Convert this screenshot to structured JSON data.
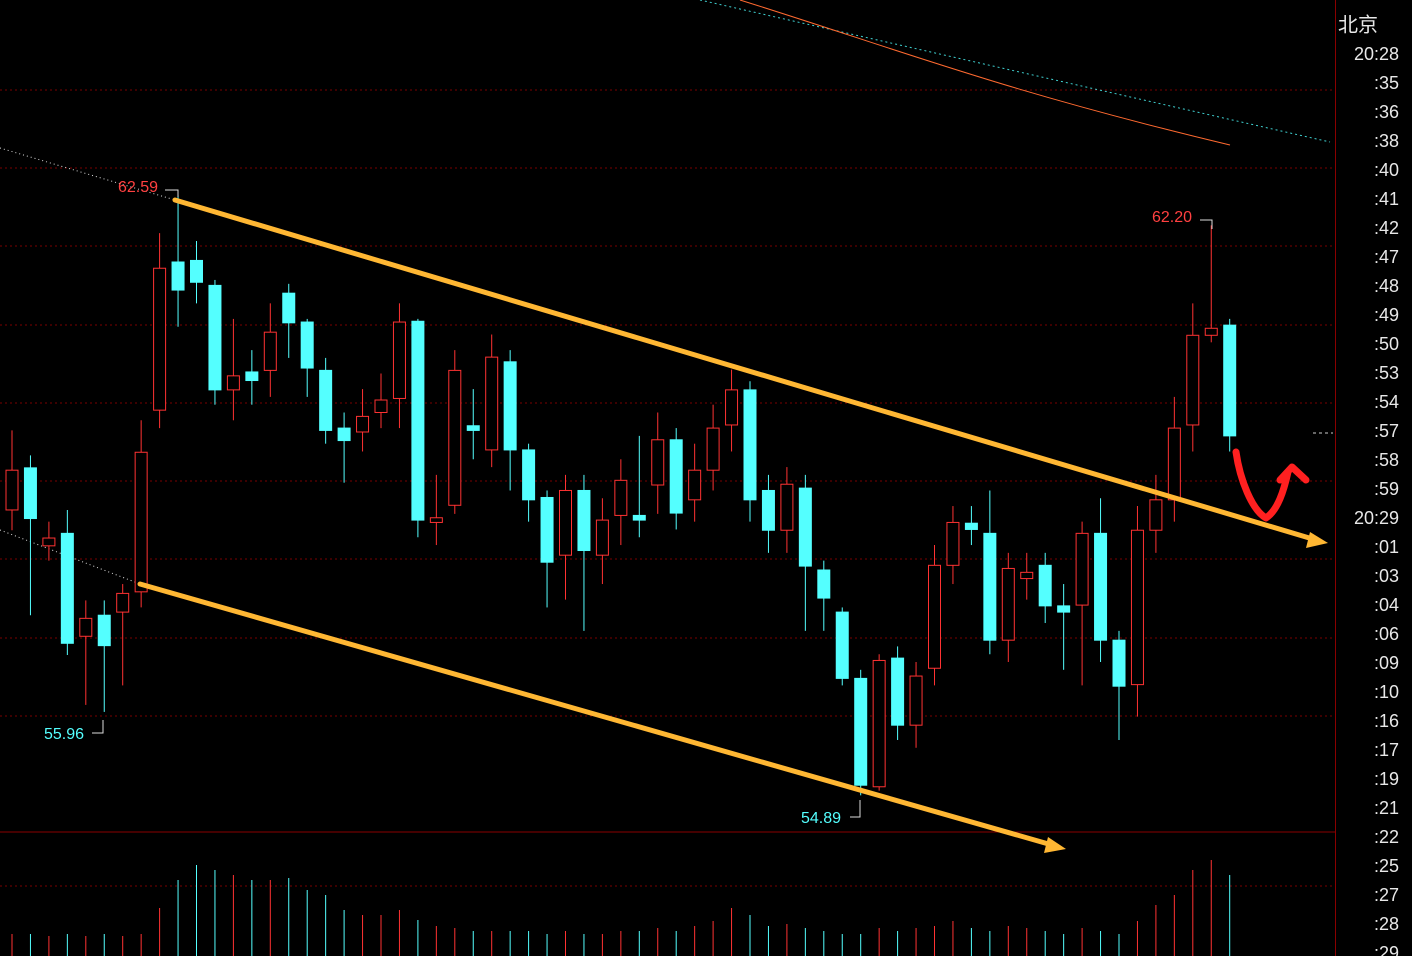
{
  "chart_data": {
    "type": "candlestick",
    "up_color": "#ff3232",
    "down_color": "#54ffff",
    "ylim": [
      54.42,
      65.09
    ],
    "volume_ylim": [
      0,
      121
    ],
    "open": [
      58.55,
      59.09,
      58.09,
      58.25,
      56.93,
      57.2,
      57.24,
      57.5,
      59.83,
      61.73,
      61.75,
      61.43,
      60.09,
      60.32,
      60.34,
      61.33,
      60.96,
      60.34,
      59.6,
      59.55,
      59.8,
      59.98,
      60.97,
      58.39,
      58.61,
      59.63,
      59.32,
      60.45,
      59.32,
      58.71,
      57.97,
      58.8,
      57.97,
      58.48,
      58.48,
      58.87,
      59.45,
      58.68,
      59.06,
      59.64,
      60.09,
      58.8,
      58.29,
      58.83,
      57.78,
      57.24,
      56.39,
      55.0,
      56.65,
      55.79,
      56.52,
      57.84,
      58.38,
      58.25,
      56.88,
      57.67,
      57.84,
      57.32,
      57.33,
      58.25,
      56.88,
      56.31,
      58.29,
      58.68,
      59.64,
      60.79,
      60.92
    ],
    "high": [
      59.57,
      59.25,
      58.4,
      58.55,
      57.39,
      57.39,
      57.6,
      59.7,
      62.1,
      62.59,
      62.0,
      61.5,
      61.0,
      60.6,
      61.2,
      61.45,
      61.0,
      60.5,
      59.8,
      60.1,
      60.3,
      61.2,
      61.0,
      59.0,
      60.6,
      60.1,
      60.8,
      60.6,
      59.4,
      58.8,
      59.0,
      59.0,
      58.7,
      59.2,
      59.5,
      59.8,
      59.6,
      59.4,
      59.9,
      60.35,
      60.2,
      59.0,
      59.1,
      59.0,
      57.9,
      57.3,
      56.5,
      56.7,
      56.8,
      56.6,
      58.1,
      58.6,
      58.6,
      58.8,
      58.0,
      58.0,
      58.0,
      57.6,
      58.4,
      58.7,
      57.0,
      58.6,
      59.0,
      60.0,
      61.2,
      62.2,
      61.0
    ],
    "low": [
      58.29,
      57.2,
      57.9,
      56.69,
      56.05,
      55.96,
      56.3,
      57.3,
      59.6,
      60.9,
      61.2,
      59.9,
      59.7,
      59.9,
      60.0,
      60.5,
      60.0,
      59.4,
      58.9,
      59.3,
      59.6,
      59.6,
      58.2,
      58.1,
      58.5,
      59.2,
      59.1,
      58.8,
      58.4,
      57.3,
      57.4,
      57.0,
      57.6,
      58.1,
      58.2,
      58.5,
      58.3,
      58.4,
      58.8,
      59.3,
      58.4,
      58.0,
      58.0,
      57.0,
      57.0,
      56.3,
      54.89,
      54.95,
      55.6,
      55.5,
      56.3,
      57.6,
      58.1,
      56.7,
      56.6,
      57.4,
      57.1,
      56.5,
      56.3,
      56.6,
      55.6,
      55.9,
      58.0,
      58.4,
      59.3,
      60.7,
      59.3
    ],
    "close": [
      59.06,
      58.44,
      58.19,
      56.84,
      57.16,
      56.81,
      57.48,
      59.29,
      61.65,
      61.37,
      61.47,
      60.09,
      60.27,
      60.21,
      60.83,
      60.95,
      60.37,
      59.57,
      59.44,
      59.75,
      59.96,
      60.96,
      58.42,
      58.45,
      60.34,
      59.57,
      60.51,
      59.32,
      58.68,
      57.88,
      58.8,
      58.03,
      58.42,
      58.93,
      58.42,
      59.45,
      58.51,
      59.06,
      59.6,
      60.09,
      58.68,
      58.29,
      58.88,
      57.83,
      57.42,
      56.39,
      55.02,
      56.62,
      55.79,
      56.42,
      57.84,
      58.39,
      58.3,
      56.88,
      57.8,
      57.75,
      57.32,
      57.24,
      58.25,
      56.88,
      56.29,
      58.29,
      58.68,
      59.6,
      60.79,
      60.88,
      59.5
    ],
    "volume": [
      22,
      22,
      20,
      22,
      20,
      22,
      20,
      22,
      48,
      76,
      91,
      86,
      81,
      76,
      76,
      78,
      66,
      61,
      46,
      41,
      41,
      46,
      36,
      30,
      28,
      25,
      25,
      25,
      25,
      22,
      25,
      22,
      22,
      25,
      25,
      28,
      25,
      30,
      35,
      48,
      41,
      30,
      32,
      28,
      25,
      22,
      22,
      28,
      25,
      28,
      30,
      35,
      28,
      25,
      30,
      28,
      25,
      22,
      28,
      25,
      22,
      35,
      51,
      61,
      86,
      96,
      81
    ],
    "annotations": [
      "62.59",
      "62.20",
      "55.96",
      "54.89"
    ]
  },
  "time_panel": {
    "location": "北京",
    "times": [
      "20:28",
      ":35",
      ":36",
      ":38",
      ":40",
      ":41",
      ":42",
      ":47",
      ":48",
      ":49",
      ":50",
      ":53",
      ":54",
      ":57",
      ":58",
      ":59",
      "20:29",
      ":01",
      ":03",
      ":04",
      ":06",
      ":09",
      ":10",
      ":16",
      ":17",
      ":19",
      ":21",
      ":22",
      ":25",
      ":27",
      ":28",
      ":29"
    ]
  }
}
